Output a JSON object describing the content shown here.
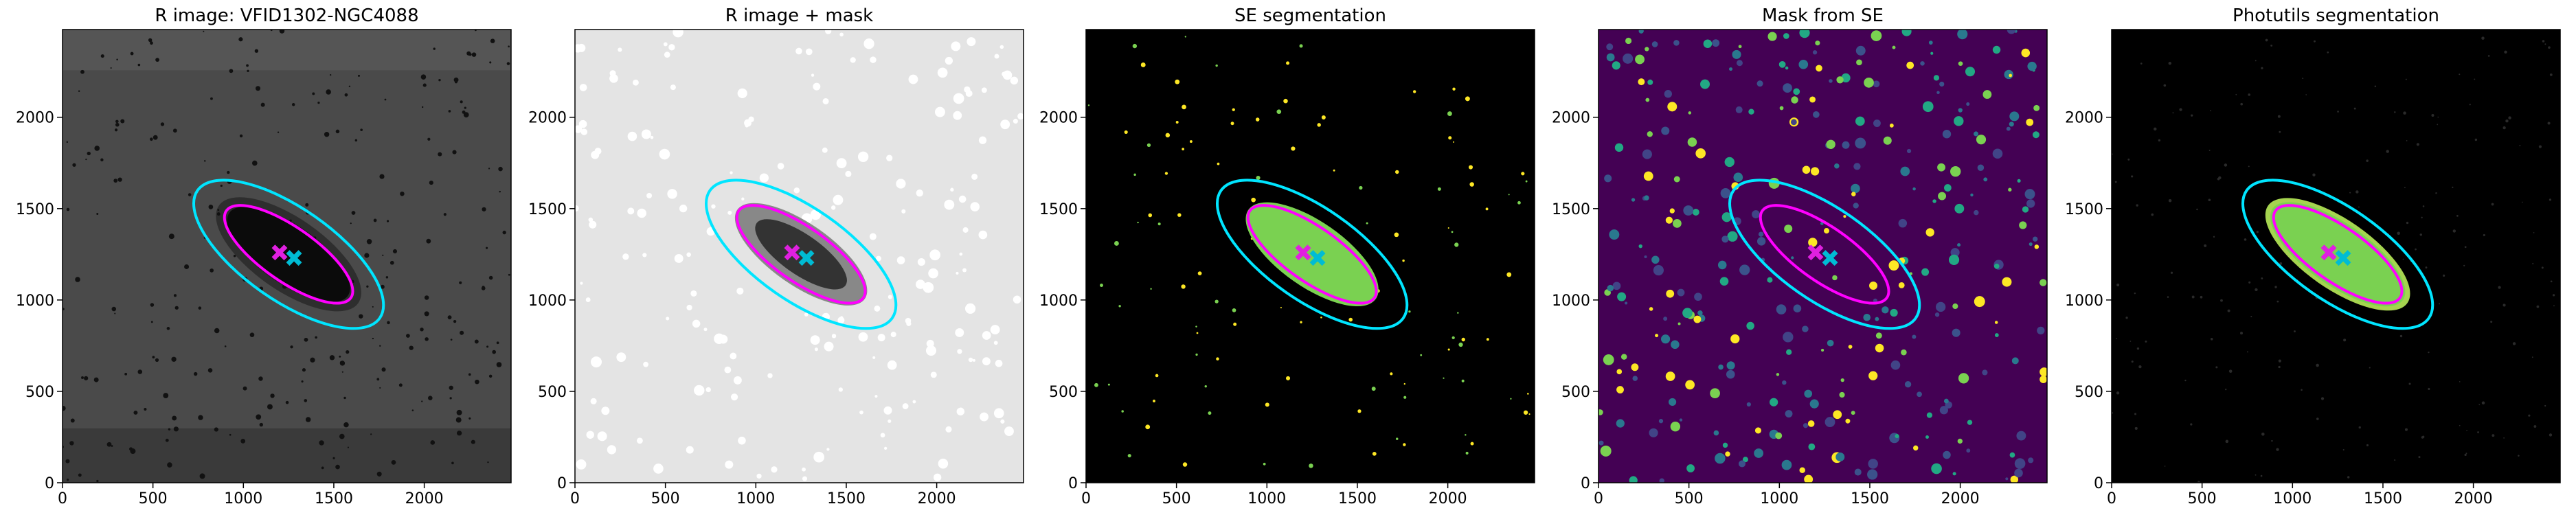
{
  "chart_data": [
    {
      "type": "image",
      "title": "R image: VFID1302-NGC4088",
      "xlim": [
        0,
        2480
      ],
      "ylim": [
        0,
        2480
      ],
      "xticks": [
        0,
        500,
        1000,
        1500,
        2000
      ],
      "yticks": [
        0,
        500,
        1000,
        1500,
        2000
      ]
    },
    {
      "type": "image",
      "title": "R image + mask",
      "xlim": [
        0,
        2480
      ],
      "ylim": [
        0,
        2480
      ],
      "xticks": [
        0,
        500,
        1000,
        1500,
        2000
      ],
      "yticks": [
        0,
        500,
        1000,
        1500,
        2000
      ]
    },
    {
      "type": "image",
      "title": "SE segmentation",
      "xlim": [
        0,
        2480
      ],
      "ylim": [
        0,
        2480
      ],
      "xticks": [
        0,
        500,
        1000,
        1500,
        2000
      ],
      "yticks": [
        0,
        500,
        1000,
        1500,
        2000
      ]
    },
    {
      "type": "image",
      "title": "Mask from SE",
      "xlim": [
        0,
        2480
      ],
      "ylim": [
        0,
        2480
      ],
      "xticks": [
        0,
        500,
        1000,
        1500,
        2000
      ],
      "yticks": [
        0,
        500,
        1000,
        1500,
        2000
      ]
    },
    {
      "type": "image",
      "title": "Photutils segmentation",
      "xlim": [
        0,
        2480
      ],
      "ylim": [
        0,
        2480
      ],
      "xticks": [
        0,
        500,
        1000,
        1500,
        2000
      ],
      "yticks": [
        0,
        500,
        1000,
        1500,
        2000
      ]
    }
  ]
}
